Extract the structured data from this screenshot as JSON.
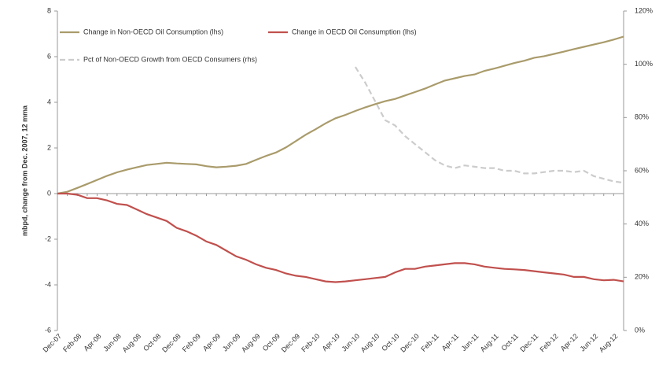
{
  "chart_data": {
    "type": "line",
    "y_label": "mbpd, change from Dec. 2007, 12 mma",
    "categories": [
      "Dec-07",
      null,
      "Feb-08",
      null,
      "Apr-08",
      null,
      "Jun-08",
      null,
      "Aug-08",
      null,
      "Oct-08",
      null,
      "Dec-08",
      null,
      "Feb-09",
      null,
      "Apr-09",
      null,
      "Jun-09",
      null,
      "Aug-09",
      null,
      "Oct-09",
      null,
      "Dec-09",
      null,
      "Feb-10",
      null,
      "Apr-10",
      null,
      "Jun-10",
      null,
      "Aug-10",
      null,
      "Oct-10",
      null,
      "Dec-10",
      null,
      "Feb-11",
      null,
      "Apr-11",
      null,
      "Jun-11",
      null,
      "Aug-11",
      null,
      "Oct-11",
      null,
      "Dec-11",
      null,
      "Feb-12",
      null,
      "Apr-12",
      null,
      "Jun-12",
      null,
      "Aug-12",
      null
    ],
    "series": [
      {
        "name": "Change in Non-OECD Oil Consumption (lhs)",
        "color": "#a99b6b",
        "dashed": false,
        "values": [
          0,
          0.08,
          0.25,
          0.42,
          0.6,
          0.78,
          0.93,
          1.05,
          1.15,
          1.25,
          1.3,
          1.35,
          1.32,
          1.3,
          1.28,
          1.2,
          1.15,
          1.18,
          1.22,
          1.3,
          1.48,
          1.65,
          1.8,
          2.02,
          2.3,
          2.58,
          2.82,
          3.08,
          3.3,
          3.45,
          3.62,
          3.78,
          3.92,
          4.05,
          4.15,
          4.3,
          4.45,
          4.6,
          4.78,
          4.95,
          5.05,
          5.15,
          5.22,
          5.38,
          5.48,
          5.6,
          5.72,
          5.82,
          5.95,
          6.02,
          6.12,
          6.22,
          6.33,
          6.43,
          6.53,
          6.63,
          6.75,
          6.88
        ]
      },
      {
        "name": "Change in OECD Oil Consumption (lhs)",
        "color": "#c0504d",
        "dashed": false,
        "values": [
          0,
          0,
          -0.05,
          -0.2,
          -0.2,
          -0.3,
          -0.45,
          -0.5,
          -0.7,
          -0.9,
          -1.05,
          -1.2,
          -1.5,
          -1.65,
          -1.85,
          -2.1,
          -2.25,
          -2.5,
          -2.75,
          -2.9,
          -3.1,
          -3.25,
          -3.35,
          -3.5,
          -3.6,
          -3.65,
          -3.75,
          -3.85,
          -3.88,
          -3.85,
          -3.8,
          -3.75,
          -3.7,
          -3.65,
          -3.45,
          -3.3,
          -3.3,
          -3.2,
          -3.15,
          -3.1,
          -3.05,
          -3.05,
          -3.1,
          -3.2,
          -3.25,
          -3.3,
          -3.32,
          -3.35,
          -3.4,
          -3.45,
          -3.5,
          -3.55,
          -3.65,
          -3.65,
          -3.75,
          -3.8,
          -3.78,
          -3.85
        ]
      },
      {
        "name": "Pct of Non-OECD Growth from OECD Consumers (rhs)",
        "color": "#cccccc",
        "dashed": true,
        "axis": "y2",
        "values": [
          null,
          null,
          null,
          null,
          null,
          null,
          null,
          null,
          null,
          null,
          null,
          null,
          null,
          null,
          null,
          null,
          null,
          null,
          null,
          null,
          null,
          null,
          null,
          null,
          null,
          null,
          null,
          null,
          null,
          null,
          99,
          93,
          86,
          79,
          77,
          73,
          70,
          67,
          64,
          62,
          61,
          62,
          61.5,
          61,
          61,
          60,
          60,
          59,
          59,
          59.5,
          60,
          60,
          59.5,
          60,
          58,
          57,
          56,
          55.5
        ]
      }
    ],
    "ylim": [
      -6,
      8
    ],
    "yticks": [
      -6,
      -4,
      -2,
      0,
      2,
      4,
      6,
      8
    ],
    "y2lim": [
      0,
      120
    ],
    "y2ticks": [
      {
        "value": 0,
        "label": "0%"
      },
      {
        "value": 20,
        "label": "20%"
      },
      {
        "value": 40,
        "label": "40%"
      },
      {
        "value": 60,
        "label": "60%"
      },
      {
        "value": 80,
        "label": "80%"
      },
      {
        "value": 100,
        "label": "100%"
      },
      {
        "value": 120,
        "label": "120%"
      }
    ],
    "grid": false
  }
}
